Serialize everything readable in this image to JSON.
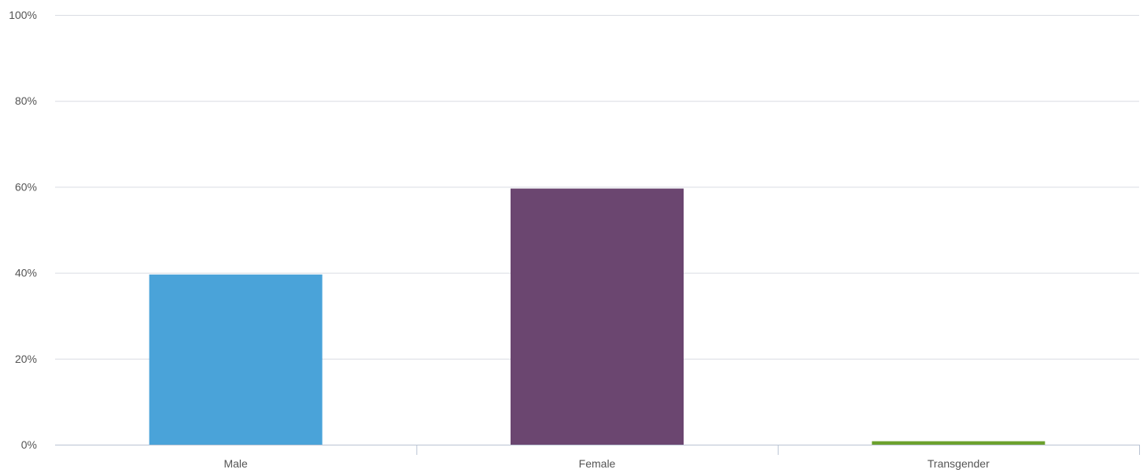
{
  "chart_data": {
    "type": "bar",
    "categories": [
      "Male",
      "Female",
      "Transgender"
    ],
    "values": [
      39.6,
      59.6,
      0.8
    ],
    "colors": [
      "#4aa3d9",
      "#6b4670",
      "#6ca12e"
    ],
    "yticks": [
      "0%",
      "20%",
      "40%",
      "60%",
      "80%",
      "100%"
    ],
    "ytick_values": [
      0,
      20,
      40,
      60,
      80,
      100
    ],
    "ylim": [
      0,
      100
    ],
    "grid": true,
    "title": "",
    "xlabel": "",
    "ylabel": ""
  }
}
